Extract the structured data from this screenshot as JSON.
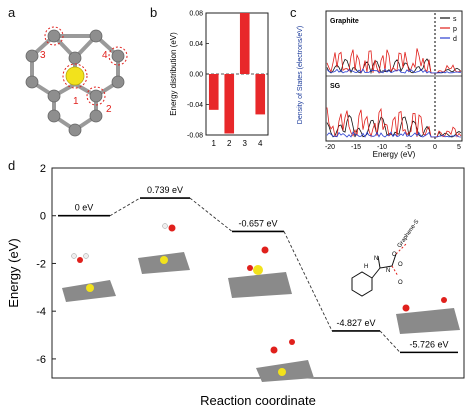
{
  "panels": {
    "a": {
      "letter": "a",
      "site_labels": [
        "1",
        "2",
        "3",
        "4"
      ]
    },
    "b": {
      "letter": "b"
    },
    "c": {
      "letter": "c",
      "graphite_label": "Graphite",
      "sg_label": "SG",
      "legend": [
        {
          "label": "s",
          "color": "#111111"
        },
        {
          "label": "p",
          "color": "#e0201c"
        },
        {
          "label": "d",
          "color": "#2a3fd0"
        }
      ],
      "ylabel": "Density of States (electrons/eV)",
      "xlabel": "Energy (eV)",
      "xticks": [
        "-20",
        "-15",
        "-10",
        "-5",
        "0",
        "5"
      ]
    },
    "d": {
      "letter": "d",
      "inset_label": "Graphene-S",
      "inset_atoms": [
        "N",
        "H",
        "O",
        "N",
        "O",
        "O"
      ]
    }
  },
  "chart_data": [
    {
      "type": "bar",
      "title": "",
      "xlabel": "",
      "ylabel": "Energy distribution (eV)",
      "categories": [
        "1",
        "2",
        "3",
        "4"
      ],
      "values": [
        -0.047,
        -0.078,
        0.08,
        -0.053
      ],
      "ylim": [
        -0.08,
        0.08
      ],
      "yticks": [
        "0.08",
        "0.04",
        "0.00",
        "-0.04",
        "-0.08"
      ],
      "color": "#e8282a"
    },
    {
      "type": "line",
      "title": "",
      "xlabel": "Reaction coordinate",
      "ylabel": "Energy (eV)",
      "ylim": [
        -6.8,
        2
      ],
      "yticks": [
        "2",
        "0",
        "-2",
        "-4",
        "-6"
      ],
      "x": [
        1,
        2,
        3,
        4,
        5
      ],
      "values": [
        0,
        0.739,
        -0.657,
        -4.827,
        -5.726
      ],
      "labels": [
        "0 eV",
        "0.739 eV",
        "-0.657 eV",
        "-4.827 eV",
        "-5.726 eV"
      ]
    }
  ]
}
